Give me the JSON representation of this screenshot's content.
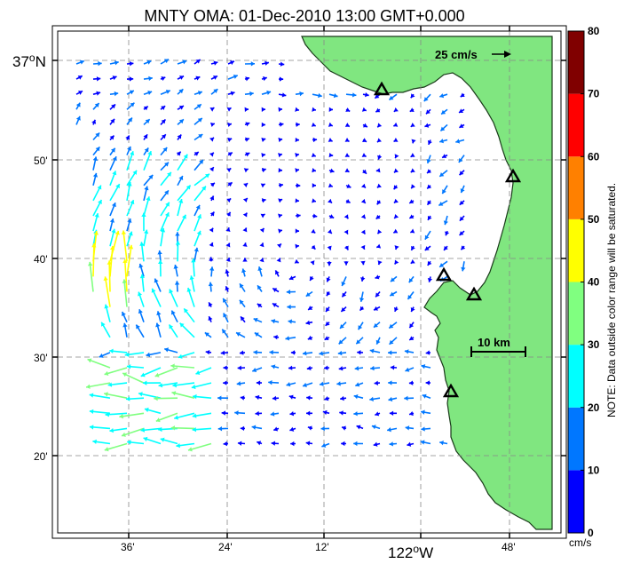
{
  "title": "MNTY OMA: 01-Dec-2010 13:00 GMT+0.000",
  "lat_labels": {
    "a": {
      "deg": "37",
      "sup": "o",
      "hem": "N"
    },
    "b": "50'",
    "c": "40'",
    "d": "30'",
    "e": "20'"
  },
  "lon_labels": {
    "a": "36'",
    "b": "24'",
    "c": "12'",
    "d": {
      "deg": "122",
      "sup": "o",
      "hem": "W"
    },
    "e": "48'"
  },
  "reference_arrow_label": "25 cm/s",
  "distance_scale_label": "10 km",
  "colorbar": {
    "ticks": [
      "80",
      "70",
      "60",
      "50",
      "40",
      "30",
      "20",
      "10",
      "0"
    ],
    "unit": "cm/s",
    "note": "NOTE: Data outside color range will be saturated.",
    "colors": [
      "#0000ff",
      "#0077ff",
      "#00ffff",
      "#80ff80",
      "#ffff00",
      "#ff8000",
      "#ff0000",
      "#800000"
    ]
  },
  "colors": {
    "land": "#80e680",
    "coast": "#1a3a1a",
    "station_marker": "#000000"
  },
  "stations_count_note": "",
  "field": {
    "description_only_for_script": ""
  }
}
